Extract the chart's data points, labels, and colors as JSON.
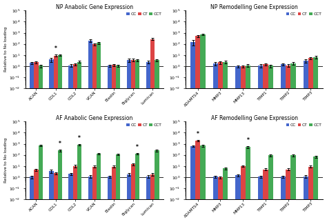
{
  "panels": [
    {
      "title": "NP Anabolic Gene Expression",
      "categories": [
        "ACAN",
        "COL1",
        "COL2",
        "VCAN",
        "Elastin",
        "Biglycan",
        "Lumican"
      ],
      "CC": [
        2,
        4,
        1.2,
        200,
        1.1,
        3.5,
        2.5
      ],
      "CT": [
        2.2,
        9,
        1.5,
        90,
        1.3,
        3.8,
        280
      ],
      "CCT": [
        1.1,
        10,
        2.5,
        120,
        1.1,
        3.5,
        3.5
      ],
      "CC_err": [
        0.5,
        1.5,
        0.3,
        50,
        0.2,
        1.0,
        0.8
      ],
      "CT_err": [
        0.5,
        2.0,
        0.4,
        20,
        0.3,
        1.0,
        60
      ],
      "CCT_err": [
        0.3,
        1.5,
        0.5,
        20,
        0.2,
        0.8,
        0.8
      ],
      "stars": [
        null,
        "CT",
        null,
        null,
        null,
        null,
        null
      ]
    },
    {
      "title": "NP Remodelling Gene Expression",
      "categories": [
        "ADAMTS4",
        "MMP3",
        "MMP13",
        "TIMP1",
        "TIMP2",
        "TIMP3"
      ],
      "CC": [
        150,
        1.8,
        1.0,
        1.2,
        1.5,
        3.0
      ],
      "CT": [
        500,
        2.2,
        1.0,
        1.5,
        1.2,
        5.5
      ],
      "CCT": [
        700,
        2.5,
        1.2,
        1.1,
        1.8,
        6.5
      ],
      "CC_err": [
        80,
        0.6,
        0.2,
        0.4,
        0.4,
        1.0
      ],
      "CT_err": [
        100,
        0.6,
        0.2,
        0.4,
        0.3,
        1.2
      ],
      "CCT_err": [
        120,
        0.6,
        0.3,
        0.3,
        0.4,
        1.5
      ],
      "stars": [
        null,
        null,
        null,
        null,
        null,
        null
      ]
    },
    {
      "title": "AF Anabolic Gene Expression",
      "categories": [
        "ACAN",
        "COL1",
        "COL2",
        "VCAN",
        "Elastin",
        "Biglycan",
        "Lumican"
      ],
      "CC": [
        1.1,
        3.5,
        2.0,
        1.2,
        1.1,
        1.8,
        1.2
      ],
      "CT": [
        4.5,
        2.2,
        10.0,
        9.0,
        9.0,
        15.0,
        1.8
      ],
      "CCT": [
        700,
        250,
        800,
        130,
        110,
        130,
        250
      ],
      "CC_err": [
        0.3,
        1.2,
        0.5,
        0.3,
        0.2,
        0.5,
        0.3
      ],
      "CT_err": [
        1.0,
        0.5,
        2.5,
        2.0,
        2.0,
        3.0,
        0.4
      ],
      "CCT_err": [
        100,
        50,
        100,
        20,
        20,
        20,
        50
      ],
      "stars": [
        null,
        "CCT",
        "CCT",
        null,
        null,
        "CCT",
        null
      ]
    },
    {
      "title": "AF Remodelling Gene Expression",
      "categories": [
        "ADAMTS4",
        "MMP3",
        "MMP13",
        "TIMP1",
        "TIMP2",
        "TIMP3"
      ],
      "CC": [
        600,
        1.1,
        1.5,
        1.1,
        1.1,
        1.2
      ],
      "CT": [
        2000,
        1.0,
        10.0,
        5.0,
        5.0,
        9.0
      ],
      "CCT": [
        700,
        6.0,
        500,
        90,
        90,
        70
      ],
      "CC_err": [
        100,
        0.2,
        0.4,
        0.2,
        0.2,
        0.3
      ],
      "CT_err": [
        300,
        0.2,
        2.0,
        1.0,
        1.0,
        2.0
      ],
      "CCT_err": [
        150,
        1.0,
        80,
        15,
        15,
        15
      ],
      "stars": [
        "CT",
        null,
        "CCT",
        null,
        null,
        null
      ]
    }
  ],
  "colors": {
    "CC": "#4466cc",
    "CT": "#dd4444",
    "CCT": "#44aa55"
  },
  "ylabel": "Relative to No loading",
  "legend_labels": [
    "CC",
    "CT",
    "CCT"
  ]
}
